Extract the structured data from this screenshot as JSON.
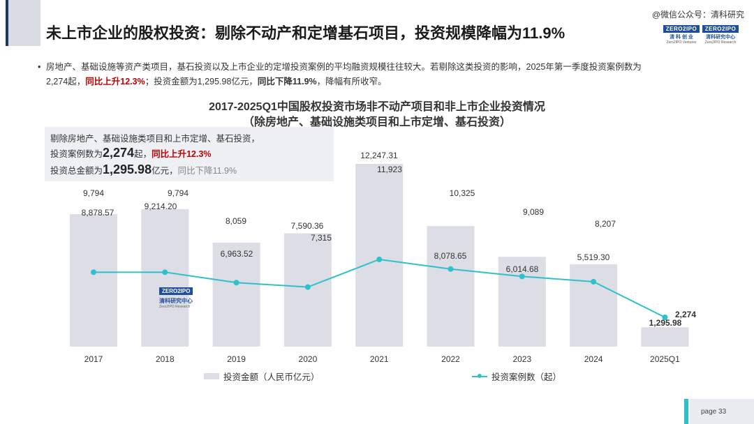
{
  "header": {
    "title": "未上市企业的股权投资：剔除不动产和定增基石项目，投资规模降幅为11.9%",
    "wechat": "@微信公众号：清科研究",
    "logo1": {
      "top": "ZERO2IPO",
      "cn": "清 科 创 业",
      "en": "Zero2IPO Ventures"
    },
    "logo2": {
      "top": "ZERO2IPO",
      "cn": "清科研究中心",
      "en": "Zero2IPO Research"
    }
  },
  "bullet": {
    "dot": "•",
    "text1": "房地产、基础设施等资产类项目，基石投资以及上市企业的定增投资案例的平均融资规模往往较大。若剔除这类投资的影响，2025年第一季度投资案例数为",
    "text2": "2,274起，",
    "red1": "同比上升12.3%",
    "text3": "；投资金额为1,295.98亿元，",
    "bold1": "同比下降11.9%",
    "text4": "，降幅有所收窄。"
  },
  "summary": {
    "line1": "剔除房地产、基础设施类项目和上市定增、基石投资，",
    "line2_pre": "投资案例数为",
    "line2_num": "2,274",
    "line2_unit": "起，",
    "line2_red": "同比上升12.3%",
    "line3_pre": "投资总金额为",
    "line3_num": "1,295.98",
    "line3_unit": "亿元，",
    "line3_grey": "同比下降11.9%"
  },
  "watermark": {
    "top": "ZERO2IPO",
    "cn": "清科研究中心",
    "en": "Zero2IPO Research"
  },
  "footer": {
    "page": "page  33"
  },
  "chart_data": {
    "type": "bar",
    "title": "2017-2025Q1中国股权投资市场非不动产项目和非上市企业投资情况",
    "subtitle": "（除房地产、基础设施类项目和上市定增、基石投资）",
    "categories": [
      "2017",
      "2018",
      "2019",
      "2020",
      "2021",
      "2022",
      "2023",
      "2024",
      "2025Q1"
    ],
    "series": [
      {
        "name": "投资金额（人民币亿元）",
        "type": "bar",
        "color": "#dcdde5",
        "values": [
          8878.57,
          9214.2,
          6963.52,
          7590.36,
          12247.31,
          8078.65,
          6014.68,
          5519.3,
          1295.98
        ],
        "labels": [
          "8,878.57",
          "9,214.20",
          "6,963.52",
          "7,590.36",
          "12,247.31",
          "8,078.65",
          "6,014.68",
          "5,519.30",
          "1,295.98"
        ]
      },
      {
        "name": "投资案例数（起）",
        "type": "line",
        "color": "#2fc0cc",
        "values": [
          9794,
          9794,
          8059,
          7315,
          11923,
          10325,
          9089,
          8207,
          2274
        ],
        "labels": [
          "9,794",
          "9,794",
          "8,059",
          "7,315",
          "11,923",
          "10,325",
          "9,089",
          "8,207",
          "2,274"
        ]
      }
    ]
  }
}
